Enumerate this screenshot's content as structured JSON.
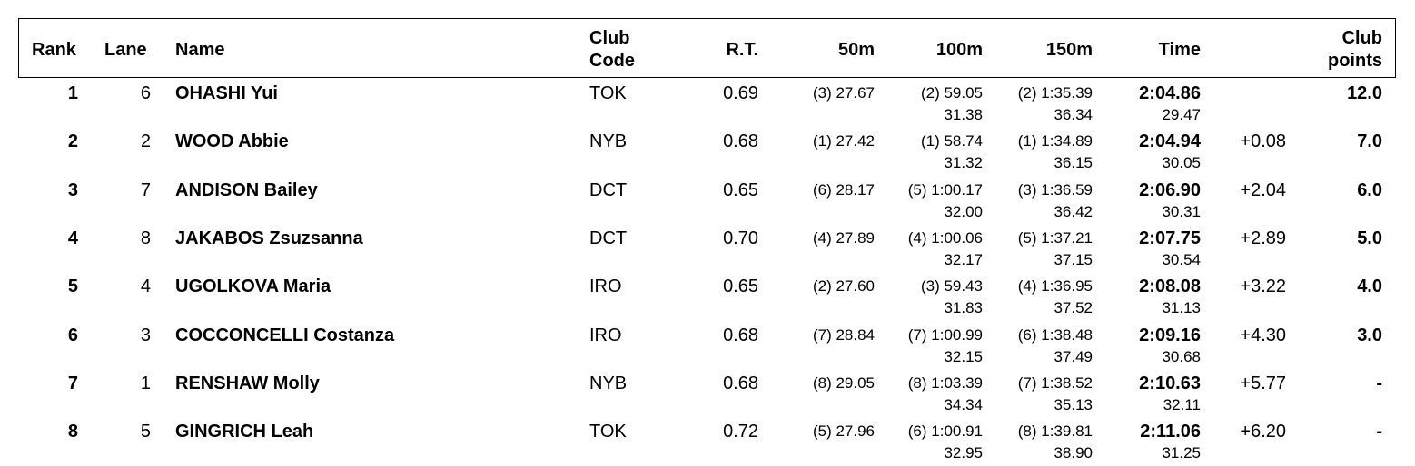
{
  "headers": {
    "rank": "Rank",
    "lane": "Lane",
    "name": "Name",
    "club_code_1": "Club",
    "club_code_2": "Code",
    "rt": "R.T.",
    "split50": "50m",
    "split100": "100m",
    "split150": "150m",
    "time": "Time",
    "club_points_1": "Club",
    "club_points_2": "points"
  },
  "rows": [
    {
      "rank": "1",
      "lane": "6",
      "name": "OHASHI Yui",
      "club": "TOK",
      "rt": "0.69",
      "split50": "(3) 27.67",
      "split100": "(2) 59.05",
      "split150": "(2) 1:35.39",
      "time": "2:04.86",
      "behind": "",
      "points": "12.0",
      "lap100": "31.38",
      "lap150": "36.34",
      "lap200": "29.47"
    },
    {
      "rank": "2",
      "lane": "2",
      "name": "WOOD Abbie",
      "club": "NYB",
      "rt": "0.68",
      "split50": "(1) 27.42",
      "split100": "(1) 58.74",
      "split150": "(1) 1:34.89",
      "time": "2:04.94",
      "behind": "+0.08",
      "points": "7.0",
      "lap100": "31.32",
      "lap150": "36.15",
      "lap200": "30.05"
    },
    {
      "rank": "3",
      "lane": "7",
      "name": "ANDISON Bailey",
      "club": "DCT",
      "rt": "0.65",
      "split50": "(6) 28.17",
      "split100": "(5) 1:00.17",
      "split150": "(3) 1:36.59",
      "time": "2:06.90",
      "behind": "+2.04",
      "points": "6.0",
      "lap100": "32.00",
      "lap150": "36.42",
      "lap200": "30.31"
    },
    {
      "rank": "4",
      "lane": "8",
      "name": "JAKABOS Zsuzsanna",
      "club": "DCT",
      "rt": "0.70",
      "split50": "(4) 27.89",
      "split100": "(4) 1:00.06",
      "split150": "(5) 1:37.21",
      "time": "2:07.75",
      "behind": "+2.89",
      "points": "5.0",
      "lap100": "32.17",
      "lap150": "37.15",
      "lap200": "30.54"
    },
    {
      "rank": "5",
      "lane": "4",
      "name": "UGOLKOVA Maria",
      "club": "IRO",
      "rt": "0.65",
      "split50": "(2) 27.60",
      "split100": "(3) 59.43",
      "split150": "(4) 1:36.95",
      "time": "2:08.08",
      "behind": "+3.22",
      "points": "4.0",
      "lap100": "31.83",
      "lap150": "37.52",
      "lap200": "31.13"
    },
    {
      "rank": "6",
      "lane": "3",
      "name": "COCCONCELLI Costanza",
      "club": "IRO",
      "rt": "0.68",
      "split50": "(7) 28.84",
      "split100": "(7) 1:00.99",
      "split150": "(6) 1:38.48",
      "time": "2:09.16",
      "behind": "+4.30",
      "points": "3.0",
      "lap100": "32.15",
      "lap150": "37.49",
      "lap200": "30.68"
    },
    {
      "rank": "7",
      "lane": "1",
      "name": "RENSHAW Molly",
      "club": "NYB",
      "rt": "0.68",
      "split50": "(8) 29.05",
      "split100": "(8) 1:03.39",
      "split150": "(7) 1:38.52",
      "time": "2:10.63",
      "behind": "+5.77",
      "points": "-",
      "lap100": "34.34",
      "lap150": "35.13",
      "lap200": "32.11"
    },
    {
      "rank": "8",
      "lane": "5",
      "name": "GINGRICH Leah",
      "club": "TOK",
      "rt": "0.72",
      "split50": "(5) 27.96",
      "split100": "(6) 1:00.91",
      "split150": "(8) 1:39.81",
      "time": "2:11.06",
      "behind": "+6.20",
      "points": "-",
      "lap100": "32.95",
      "lap150": "38.90",
      "lap200": "31.25"
    }
  ]
}
